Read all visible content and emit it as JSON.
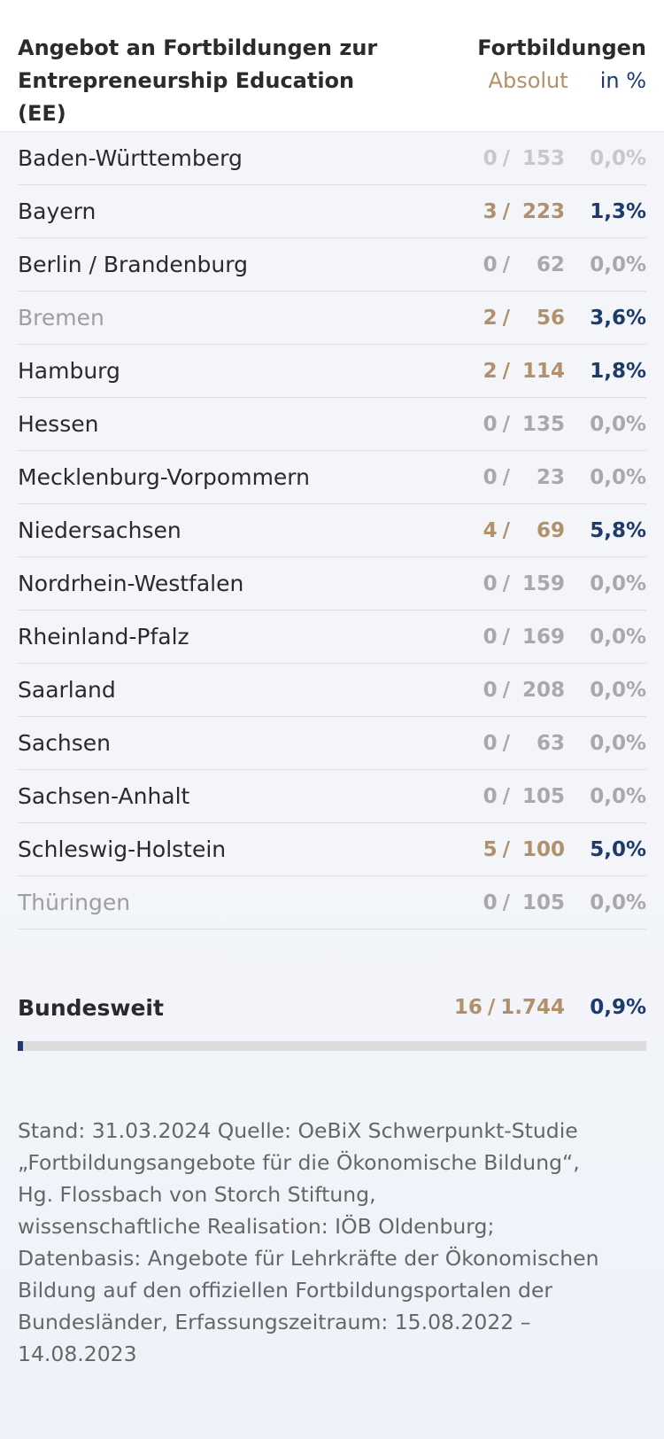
{
  "header": {
    "title_line1": "Angebot an Fortbildungen zur",
    "title_line2": "Entrepreneurship Education (EE)",
    "col_title": "Fortbildungen",
    "col_absolut": "Absolut",
    "col_percent": "in %"
  },
  "rows": [
    {
      "name": "Baden-Württemberg",
      "num": "0",
      "den": "153",
      "pct": "0,0%",
      "tone": "faint"
    },
    {
      "name": "Bayern",
      "num": "3",
      "den": "223",
      "pct": "1,3%",
      "tone": "accent"
    },
    {
      "name": "Berlin / Brandenburg",
      "num": "0",
      "den": "62",
      "pct": "0,0%",
      "tone": "zero"
    },
    {
      "name": "Bremen",
      "num": "2",
      "den": "56",
      "pct": "3,6%",
      "tone": "accent",
      "name_muted": true
    },
    {
      "name": "Hamburg",
      "num": "2",
      "den": "114",
      "pct": "1,8%",
      "tone": "accent"
    },
    {
      "name": "Hessen",
      "num": "0",
      "den": "135",
      "pct": "0,0%",
      "tone": "zero"
    },
    {
      "name": "Mecklenburg-Vorpommern",
      "num": "0",
      "den": "23",
      "pct": "0,0%",
      "tone": "zero"
    },
    {
      "name": "Niedersachsen",
      "num": "4",
      "den": "69",
      "pct": "5,8%",
      "tone": "accent"
    },
    {
      "name": "Nordrhein-Westfalen",
      "num": "0",
      "den": "159",
      "pct": "0,0%",
      "tone": "zero"
    },
    {
      "name": "Rheinland-Pfalz",
      "num": "0",
      "den": "169",
      "pct": "0,0%",
      "tone": "zero"
    },
    {
      "name": "Saarland",
      "num": "0",
      "den": "208",
      "pct": "0,0%",
      "tone": "zero"
    },
    {
      "name": "Sachsen",
      "num": "0",
      "den": "63",
      "pct": "0,0%",
      "tone": "zero"
    },
    {
      "name": "Sachsen-Anhalt",
      "num": "0",
      "den": "105",
      "pct": "0,0%",
      "tone": "zero"
    },
    {
      "name": "Schleswig-Holstein",
      "num": "5",
      "den": "100",
      "pct": "5,0%",
      "tone": "accent"
    },
    {
      "name": "Thüringen",
      "num": "0",
      "den": "105",
      "pct": "0,0%",
      "tone": "zero",
      "name_muted": true
    }
  ],
  "total": {
    "name": "Bundesweit",
    "num": "16",
    "den": "1.744",
    "pct": "0,9%",
    "fraction": 0.009
  },
  "footnote": [
    "Stand: 31.03.2024 Quelle: OeBiX Schwerpunkt-Studie",
    "„Fortbildungsangebote für die Ökonomische Bildung“,",
    "Hg. Flossbach von Storch Stiftung,",
    "wissenschaftliche Realisation: IÖB Oldenburg;",
    "Datenbasis: Angebote für Lehrkräfte der Ökonomischen",
    "Bildung auf den offiziellen Fortbildungsportalen der",
    "Bundesländer, Erfassungszeitraum: 15.08.2022 – 14.08.2023"
  ],
  "colors": {
    "accent_gold": "#b0916a",
    "accent_blue": "#1c3a6b",
    "zero_gray": "#a9a9a9"
  }
}
